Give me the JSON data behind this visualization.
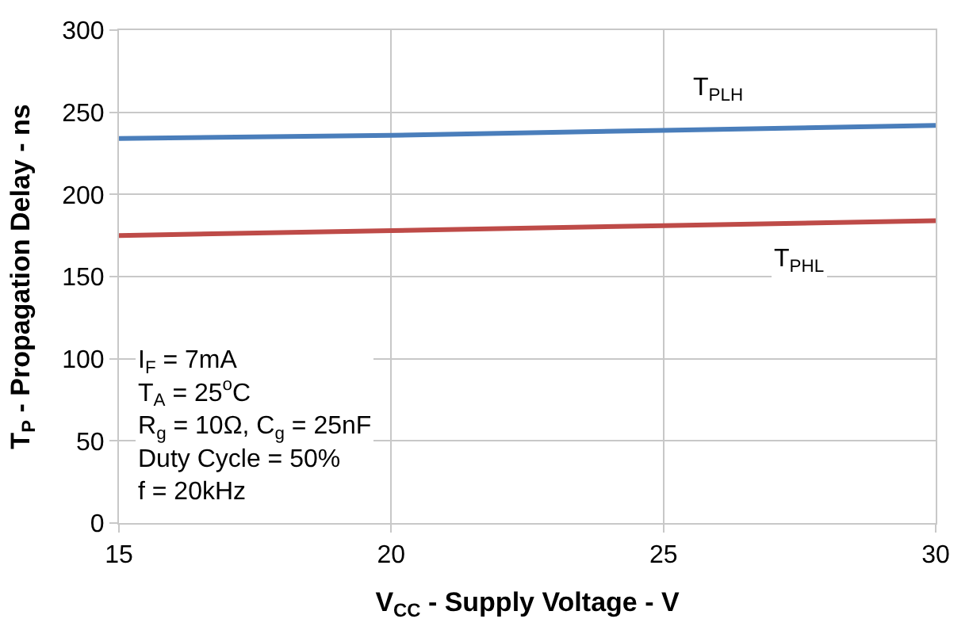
{
  "chart_data": {
    "type": "line",
    "xlabel": "V$_{CC}$ - Supply Voltage - V",
    "ylabel": "T$_{P}$ - Propagation Delay - ns",
    "x": [
      15,
      20,
      25,
      30
    ],
    "series": [
      {
        "name": "T$_{PLH}$",
        "color": "#4a7ebb",
        "values": [
          234,
          236,
          239,
          242
        ]
      },
      {
        "name": "T$_{PHL}$",
        "color": "#be4b48",
        "values": [
          175,
          178,
          181,
          184
        ]
      }
    ],
    "xlim": [
      15,
      30
    ],
    "xticks": [
      15,
      20,
      25,
      30
    ],
    "ylim": [
      0,
      300
    ],
    "yticks": [
      0,
      50,
      100,
      150,
      200,
      250,
      300
    ],
    "grid": true,
    "legend": false,
    "marker": "none",
    "line_style": "solid",
    "annotations": [
      "I$_{F}$ = 7mA\nT$_{A}$ = 25$^{o}$C\nR$_{g}$ = 10Ω, C$_{g}$ = 25nF\nDuty Cycle = 50%\nf = 20kHz"
    ]
  }
}
